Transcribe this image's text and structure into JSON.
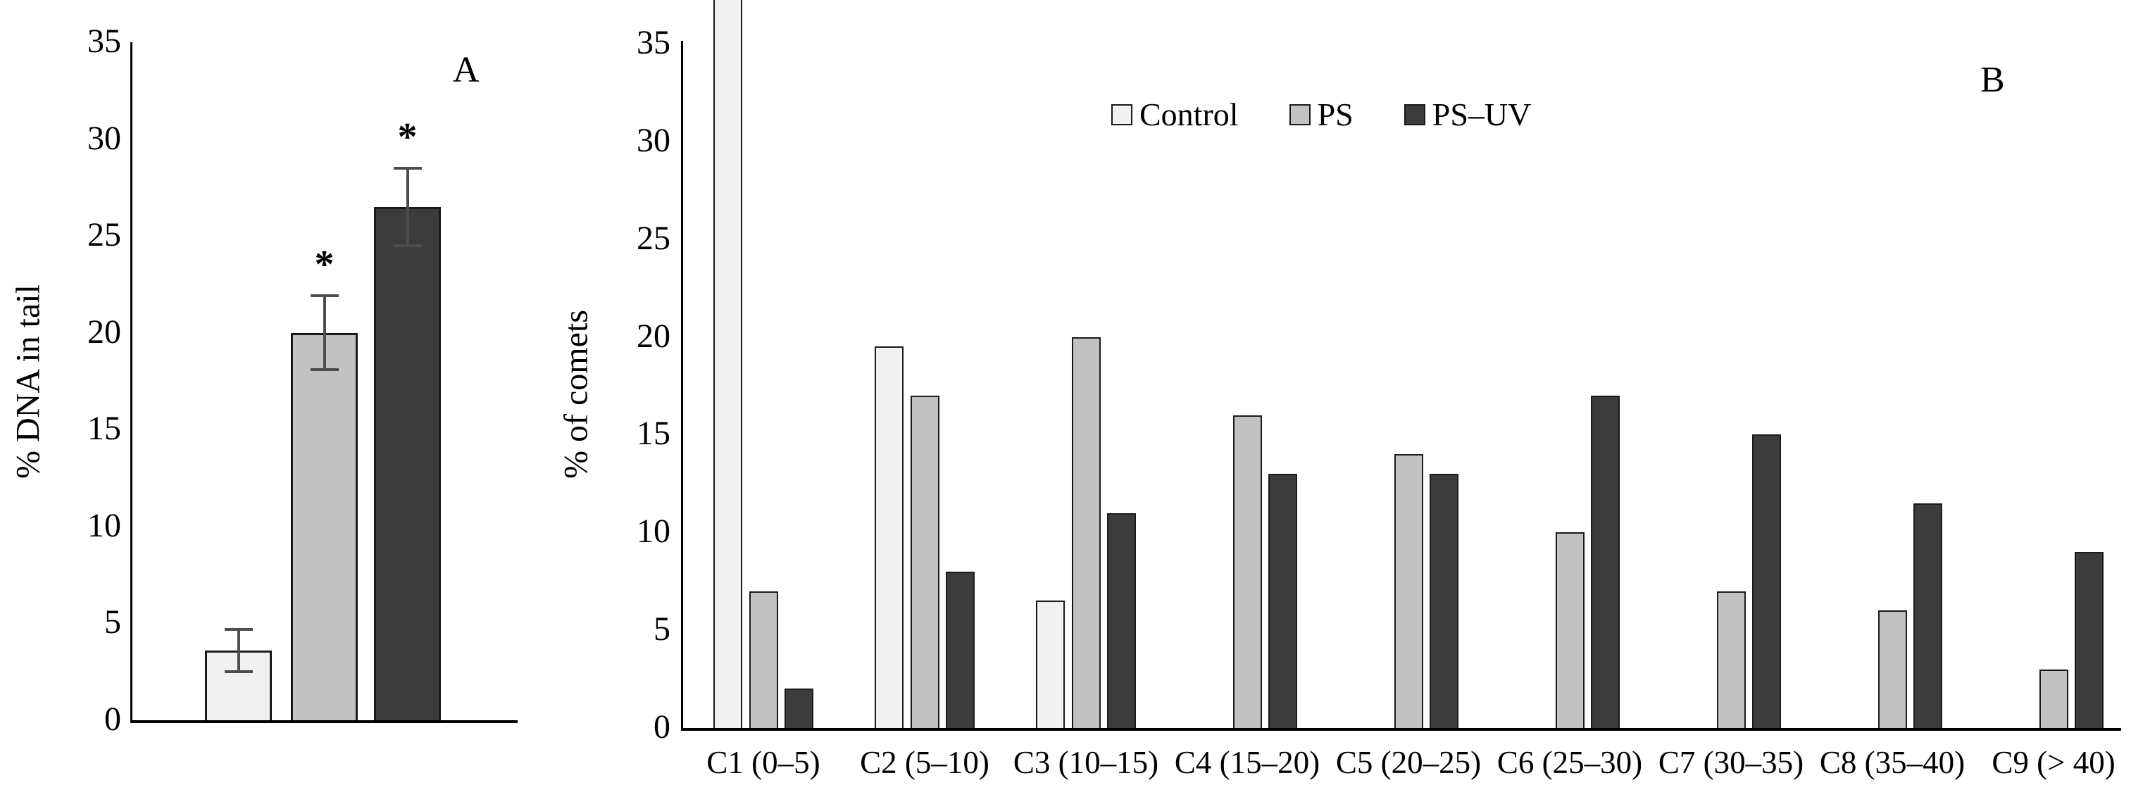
{
  "panelA": {
    "letter": "A"
  },
  "panelB": {
    "letter": "B"
  },
  "colors": {
    "control_fill": "#f1f1f1",
    "ps_fill": "#c2c2c2",
    "psuv_fill": "#3c3c3c",
    "bar_border": "#1a1a1a",
    "axis": "#000000",
    "error_bar": "#4d4d4d",
    "background": "#ffffff",
    "text": "#000000"
  },
  "chart_data": [
    {
      "type": "bar",
      "panel": "A",
      "title": "",
      "ylabel": "% DNA in tail",
      "xlabel": "",
      "ylim": [
        0,
        35
      ],
      "yticks": [
        0,
        5,
        10,
        15,
        20,
        25,
        30,
        35
      ],
      "grid": false,
      "x_tick_labels_visible": false,
      "significance_marker": "*",
      "bars": [
        {
          "group": "Control",
          "value": 3.6,
          "error": 1.1,
          "significant": false,
          "color": "#f1f1f1"
        },
        {
          "group": "PS",
          "value": 20,
          "error": 1.9,
          "significant": true,
          "color": "#c2c2c2"
        },
        {
          "group": "PS–UV",
          "value": 26.5,
          "error": 2.0,
          "significant": true,
          "color": "#3c3c3c"
        }
      ],
      "note": "Bars carry error bars (±SD); asterisks above PS and PS–UV bars; group identities implied by the shared legend colors of panel B; no x-axis tick labels are drawn"
    },
    {
      "type": "grouped-bar",
      "panel": "B",
      "title": "",
      "ylabel": "% of comets",
      "xlabel": "",
      "ylim": [
        0,
        35
      ],
      "yticks": [
        0,
        5,
        10,
        15,
        20,
        25,
        30,
        35
      ],
      "grid": false,
      "categories": [
        "C1 (0–5)",
        "C2 (5–10)",
        "C3 (10–15)",
        "C4 (15–20)",
        "C5 (20–25)",
        "C6 (25–30)",
        "C7 (30–35)",
        "C8 (35–40)",
        "C9 (> 40)"
      ],
      "series": [
        {
          "name": "Control",
          "color": "#f1f1f1",
          "values": [
            35,
            19.5,
            6.5,
            0,
            0,
            0,
            0,
            0,
            0
          ],
          "clipped_at_max": [
            true,
            false,
            false,
            false,
            false,
            false,
            false,
            false,
            false
          ]
        },
        {
          "name": "PS",
          "color": "#c2c2c2",
          "values": [
            7,
            17,
            20,
            16,
            14,
            10,
            7,
            6,
            3
          ]
        },
        {
          "name": "PS–UV",
          "color": "#3c3c3c",
          "values": [
            2,
            8,
            11,
            13,
            13,
            17,
            15,
            11.5,
            9
          ]
        }
      ],
      "legend": {
        "position": "top-center",
        "items": [
          "Control",
          "PS",
          "PS–UV"
        ]
      },
      "note": "The Control bar in class C1 extends beyond the y-axis maximum (off-scale, clipped at top of figure)"
    }
  ]
}
